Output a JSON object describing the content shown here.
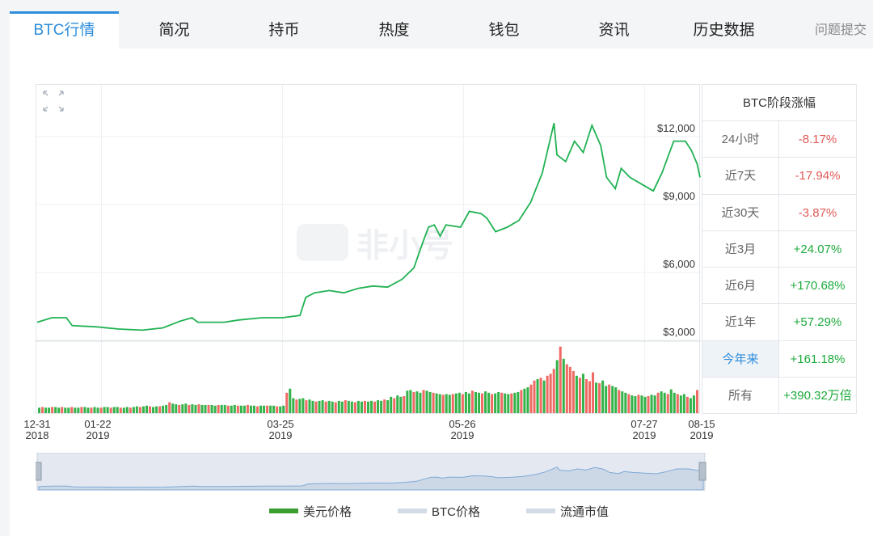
{
  "tabs": [
    {
      "label": "BTC行情",
      "active": true
    },
    {
      "label": "简况"
    },
    {
      "label": "持币"
    },
    {
      "label": "热度"
    },
    {
      "label": "钱包"
    },
    {
      "label": "资讯"
    },
    {
      "label": "历史数据"
    },
    {
      "label": "问题提交"
    }
  ],
  "watermark": "非小号",
  "stats": {
    "title": "BTC阶段涨幅",
    "rows": [
      {
        "label": "24小时",
        "value": "-8.17%",
        "sign": "neg"
      },
      {
        "label": "近7天",
        "value": "-17.94%",
        "sign": "neg"
      },
      {
        "label": "近30天",
        "value": "-3.87%",
        "sign": "neg"
      },
      {
        "label": "近3月",
        "value": "+24.07%",
        "sign": "pos"
      },
      {
        "label": "近6月",
        "value": "+170.68%",
        "sign": "pos"
      },
      {
        "label": "近1年",
        "value": "+57.29%",
        "sign": "pos"
      },
      {
        "label": "今年来",
        "value": "+161.18%",
        "sign": "pos",
        "highlight": true
      },
      {
        "label": "所有",
        "value": "+390.32万倍",
        "sign": "pos"
      }
    ]
  },
  "legend": [
    {
      "label": "美元价格",
      "color": "#3a9e2e"
    },
    {
      "label": "BTC价格",
      "color": "#d3dbe6"
    },
    {
      "label": "流通市值",
      "color": "#d3dbe6"
    }
  ],
  "chart_data": {
    "type": "line",
    "series_name": "美元价格",
    "y_axis_labels": [
      "$12,000",
      "$9,000",
      "$6,000",
      "$3,000"
    ],
    "y_ticks": [
      12000,
      9000,
      6000,
      3000
    ],
    "ylim": [
      3000,
      14000
    ],
    "x_tick_labels": [
      {
        "date": "12-31",
        "year": "2018"
      },
      {
        "date": "01-22",
        "year": "2019"
      },
      {
        "date": "03-25",
        "year": "2019"
      },
      {
        "date": "05-26",
        "year": "2019"
      },
      {
        "date": "07-27",
        "year": "2019"
      },
      {
        "date": "08-15",
        "year": "2019"
      }
    ],
    "price": [
      [
        "2018-12-31",
        3800
      ],
      [
        "2019-01-05",
        4000
      ],
      [
        "2019-01-10",
        4000
      ],
      [
        "2019-01-12",
        3650
      ],
      [
        "2019-01-20",
        3600
      ],
      [
        "2019-01-28",
        3500
      ],
      [
        "2019-02-05",
        3450
      ],
      [
        "2019-02-12",
        3550
      ],
      [
        "2019-02-18",
        3850
      ],
      [
        "2019-02-22",
        4000
      ],
      [
        "2019-02-24",
        3800
      ],
      [
        "2019-03-05",
        3800
      ],
      [
        "2019-03-10",
        3900
      ],
      [
        "2019-03-18",
        4000
      ],
      [
        "2019-03-25",
        4000
      ],
      [
        "2019-03-31",
        4100
      ],
      [
        "2019-04-02",
        4900
      ],
      [
        "2019-04-05",
        5100
      ],
      [
        "2019-04-10",
        5200
      ],
      [
        "2019-04-15",
        5100
      ],
      [
        "2019-04-20",
        5300
      ],
      [
        "2019-04-25",
        5400
      ],
      [
        "2019-04-30",
        5350
      ],
      [
        "2019-05-05",
        5700
      ],
      [
        "2019-05-09",
        6200
      ],
      [
        "2019-05-12",
        7300
      ],
      [
        "2019-05-14",
        8000
      ],
      [
        "2019-05-16",
        8100
      ],
      [
        "2019-05-18",
        7600
      ],
      [
        "2019-05-20",
        8100
      ],
      [
        "2019-05-25",
        8000
      ],
      [
        "2019-05-28",
        8700
      ],
      [
        "2019-06-01",
        8600
      ],
      [
        "2019-06-03",
        8400
      ],
      [
        "2019-06-06",
        7800
      ],
      [
        "2019-06-10",
        8000
      ],
      [
        "2019-06-14",
        8300
      ],
      [
        "2019-06-18",
        9100
      ],
      [
        "2019-06-22",
        10400
      ],
      [
        "2019-06-26",
        12600
      ],
      [
        "2019-06-27",
        11200
      ],
      [
        "2019-06-30",
        10900
      ],
      [
        "2019-07-03",
        11800
      ],
      [
        "2019-07-06",
        11300
      ],
      [
        "2019-07-09",
        12500
      ],
      [
        "2019-07-12",
        11600
      ],
      [
        "2019-07-14",
        10200
      ],
      [
        "2019-07-17",
        9700
      ],
      [
        "2019-07-19",
        10600
      ],
      [
        "2019-07-22",
        10200
      ],
      [
        "2019-07-26",
        9900
      ],
      [
        "2019-07-30",
        9600
      ],
      [
        "2019-08-02",
        10400
      ],
      [
        "2019-08-06",
        11800
      ],
      [
        "2019-08-10",
        11800
      ],
      [
        "2019-08-12",
        11400
      ],
      [
        "2019-08-14",
        10800
      ],
      [
        "2019-08-15",
        10200
      ]
    ],
    "volume_scale": "relative",
    "volume_relative": [
      0.08,
      0.09,
      0.08,
      0.08,
      0.09,
      0.09,
      0.08,
      0.09,
      0.08,
      0.08,
      0.09,
      0.08,
      0.08,
      0.09,
      0.09,
      0.08,
      0.08,
      0.09,
      0.08,
      0.08,
      0.09,
      0.09,
      0.08,
      0.09,
      0.09,
      0.08,
      0.08,
      0.09,
      0.08,
      0.09,
      0.1,
      0.09,
      0.1,
      0.11,
      0.1,
      0.09,
      0.1,
      0.1,
      0.11,
      0.12,
      0.16,
      0.14,
      0.13,
      0.12,
      0.13,
      0.14,
      0.12,
      0.13,
      0.12,
      0.13,
      0.12,
      0.12,
      0.12,
      0.12,
      0.11,
      0.12,
      0.12,
      0.12,
      0.11,
      0.11,
      0.12,
      0.11,
      0.11,
      0.11,
      0.12,
      0.11,
      0.11,
      0.1,
      0.11,
      0.11,
      0.11,
      0.11,
      0.11,
      0.1,
      0.1,
      0.11,
      0.3,
      0.36,
      0.22,
      0.2,
      0.21,
      0.22,
      0.19,
      0.2,
      0.18,
      0.17,
      0.18,
      0.19,
      0.17,
      0.18,
      0.17,
      0.16,
      0.18,
      0.17,
      0.19,
      0.18,
      0.17,
      0.16,
      0.18,
      0.17,
      0.18,
      0.17,
      0.18,
      0.17,
      0.19,
      0.18,
      0.2,
      0.19,
      0.24,
      0.22,
      0.26,
      0.24,
      0.25,
      0.33,
      0.34,
      0.31,
      0.32,
      0.3,
      0.34,
      0.33,
      0.31,
      0.3,
      0.29,
      0.28,
      0.27,
      0.28,
      0.27,
      0.28,
      0.29,
      0.3,
      0.28,
      0.31,
      0.29,
      0.33,
      0.31,
      0.3,
      0.29,
      0.32,
      0.3,
      0.28,
      0.29,
      0.31,
      0.3,
      0.29,
      0.28,
      0.29,
      0.3,
      0.31,
      0.34,
      0.36,
      0.38,
      0.42,
      0.48,
      0.5,
      0.52,
      0.48,
      0.55,
      0.58,
      0.65,
      0.78,
      0.98,
      0.8,
      0.72,
      0.68,
      0.62,
      0.55,
      0.52,
      0.58,
      0.5,
      0.47,
      0.6,
      0.45,
      0.44,
      0.48,
      0.4,
      0.42,
      0.4,
      0.38,
      0.34,
      0.32,
      0.3,
      0.28,
      0.26,
      0.25,
      0.27,
      0.26,
      0.24,
      0.25,
      0.27,
      0.26,
      0.3,
      0.32,
      0.3,
      0.28,
      0.35,
      0.3,
      0.28,
      0.26,
      0.28,
      0.24,
      0.22,
      0.26,
      0.34
    ],
    "grid": true
  }
}
